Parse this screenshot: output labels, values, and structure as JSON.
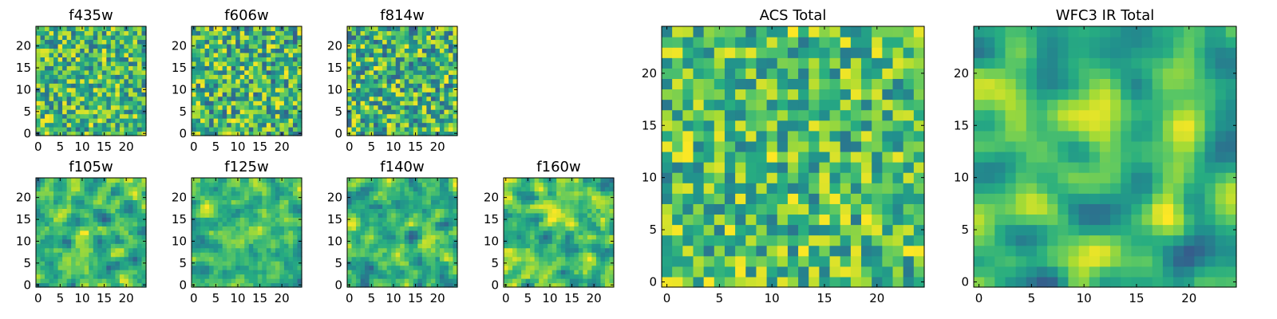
{
  "chart_data": [
    {
      "type": "heatmap",
      "title": "f435w",
      "size": 25,
      "seed": 11,
      "smooth": 0,
      "xticks": [
        0,
        5,
        10,
        15,
        20
      ],
      "yticks": [
        0,
        5,
        10,
        15,
        20
      ],
      "colormap": "viridis",
      "color_range": [
        0.35,
        1.0
      ]
    },
    {
      "type": "heatmap",
      "title": "f606w",
      "size": 25,
      "seed": 23,
      "smooth": 0,
      "xticks": [
        0,
        5,
        10,
        15,
        20
      ],
      "yticks": [
        0,
        5,
        10,
        15,
        20
      ],
      "colormap": "viridis",
      "color_range": [
        0.3,
        1.0
      ]
    },
    {
      "type": "heatmap",
      "title": "f814w",
      "size": 25,
      "seed": 37,
      "smooth": 0,
      "xticks": [
        0,
        5,
        10,
        15,
        20
      ],
      "yticks": [
        0,
        5,
        10,
        15,
        20
      ],
      "colormap": "viridis",
      "color_range": [
        0.3,
        1.0
      ]
    },
    {
      "type": "heatmap",
      "title": "f105w",
      "size": 25,
      "seed": 41,
      "smooth": 1,
      "xticks": [
        0,
        5,
        10,
        15,
        20
      ],
      "yticks": [
        0,
        5,
        10,
        15,
        20
      ],
      "colormap": "viridis",
      "color_range": [
        0.3,
        1.0
      ]
    },
    {
      "type": "heatmap",
      "title": "f125w",
      "size": 25,
      "seed": 53,
      "smooth": 1,
      "xticks": [
        0,
        5,
        10,
        15,
        20
      ],
      "yticks": [
        0,
        5,
        10,
        15,
        20
      ],
      "colormap": "viridis",
      "color_range": [
        0.35,
        1.0
      ]
    },
    {
      "type": "heatmap",
      "title": "f140w",
      "size": 25,
      "seed": 67,
      "smooth": 1,
      "xticks": [
        0,
        5,
        10,
        15,
        20
      ],
      "yticks": [
        0,
        5,
        10,
        15,
        20
      ],
      "colormap": "viridis",
      "color_range": [
        0.3,
        1.0
      ]
    },
    {
      "type": "heatmap",
      "title": "f160w",
      "size": 25,
      "seed": 79,
      "smooth": 1,
      "xticks": [
        0,
        5,
        10,
        15,
        20
      ],
      "yticks": [
        0,
        5,
        10,
        15,
        20
      ],
      "colormap": "viridis",
      "color_range": [
        0.35,
        1.0
      ]
    },
    {
      "type": "heatmap",
      "title": "ACS Total",
      "size": 25,
      "seed": 83,
      "smooth": 0,
      "xticks": [
        0,
        5,
        10,
        15,
        20
      ],
      "yticks": [
        0,
        5,
        10,
        15,
        20
      ],
      "colormap": "viridis",
      "color_range": [
        0.4,
        1.0
      ]
    },
    {
      "type": "heatmap",
      "title": "WFC3 IR Total",
      "size": 25,
      "seed": 97,
      "smooth": 2,
      "xticks": [
        0,
        5,
        10,
        15,
        20
      ],
      "yticks": [
        0,
        5,
        10,
        15,
        20
      ],
      "colormap": "viridis",
      "color_range": [
        0.3,
        1.0
      ]
    }
  ]
}
